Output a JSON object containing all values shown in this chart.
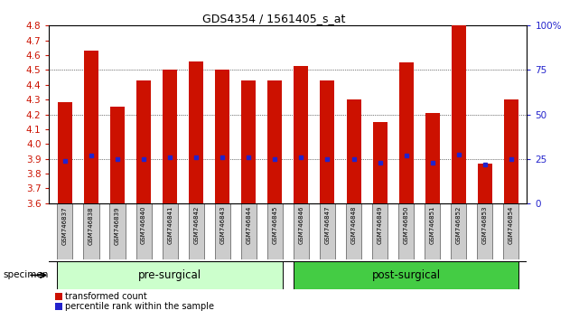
{
  "title": "GDS4354 / 1561405_s_at",
  "samples": [
    "GSM746837",
    "GSM746838",
    "GSM746839",
    "GSM746840",
    "GSM746841",
    "GSM746842",
    "GSM746843",
    "GSM746844",
    "GSM746845",
    "GSM746846",
    "GSM746847",
    "GSM746848",
    "GSM746849",
    "GSM746850",
    "GSM746851",
    "GSM746852",
    "GSM746853",
    "GSM746854"
  ],
  "bar_values": [
    4.28,
    4.63,
    4.25,
    4.43,
    4.5,
    4.56,
    4.5,
    4.43,
    4.43,
    4.53,
    4.43,
    4.3,
    4.15,
    4.55,
    4.21,
    4.8,
    3.87,
    4.3
  ],
  "percentile_values": [
    3.885,
    3.92,
    3.895,
    3.9,
    3.91,
    3.91,
    3.91,
    3.91,
    3.9,
    3.91,
    3.9,
    3.9,
    3.875,
    3.92,
    3.875,
    3.93,
    3.86,
    3.9
  ],
  "ylim_left": [
    3.6,
    4.8
  ],
  "ylim_right": [
    0,
    100
  ],
  "yticks_left": [
    3.6,
    3.7,
    3.8,
    3.9,
    4.0,
    4.1,
    4.2,
    4.3,
    4.4,
    4.5,
    4.6,
    4.7,
    4.8
  ],
  "yticks_right": [
    0,
    25,
    50,
    75,
    100
  ],
  "ytick_labels_right": [
    "0",
    "25",
    "50",
    "75",
    "100%"
  ],
  "bar_color": "#cc1100",
  "percentile_color": "#2222cc",
  "bar_bottom": 3.6,
  "groups": [
    {
      "label": "pre-surgical",
      "start": 0,
      "end": 9,
      "color": "#ccffcc"
    },
    {
      "label": "post-surgical",
      "start": 9,
      "end": 18,
      "color": "#44cc44"
    }
  ],
  "dotted_yticks": [
    3.9,
    4.2,
    4.5,
    4.8
  ],
  "specimen_label": "specimen",
  "left_color": "#cc1100",
  "right_color": "#2222cc",
  "bar_width": 0.55,
  "pre_surgical_count": 9,
  "post_surgical_count": 9
}
